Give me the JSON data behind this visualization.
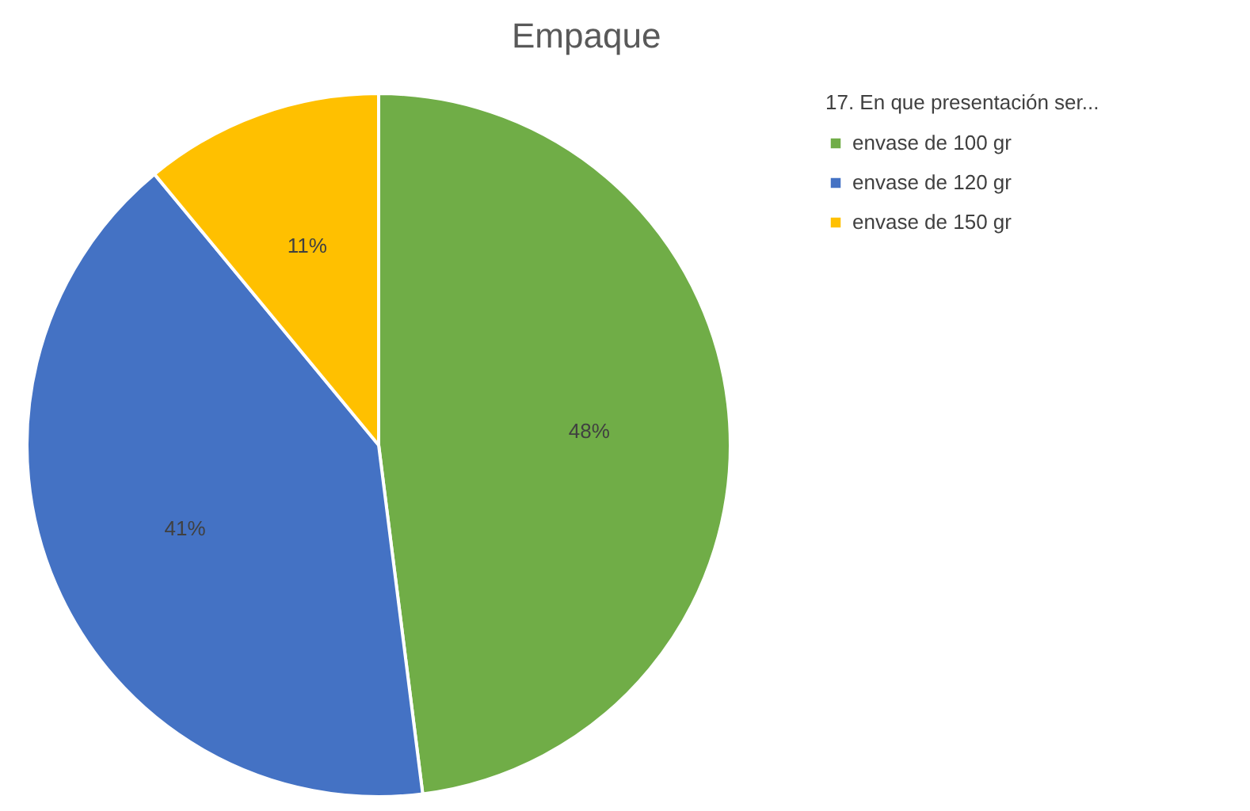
{
  "chart_data": {
    "type": "pie",
    "title": "Empaque",
    "legend_title": "17. En que presentación ser...",
    "categories": [
      "envase de 100 gr",
      "envase de 120 gr",
      "envase de 150 gr"
    ],
    "values": [
      48,
      41,
      11
    ],
    "colors": [
      "#70ad47",
      "#4472c4",
      "#ffc000"
    ],
    "value_labels": [
      "48%",
      "41%",
      "11%"
    ],
    "legend": "right"
  }
}
